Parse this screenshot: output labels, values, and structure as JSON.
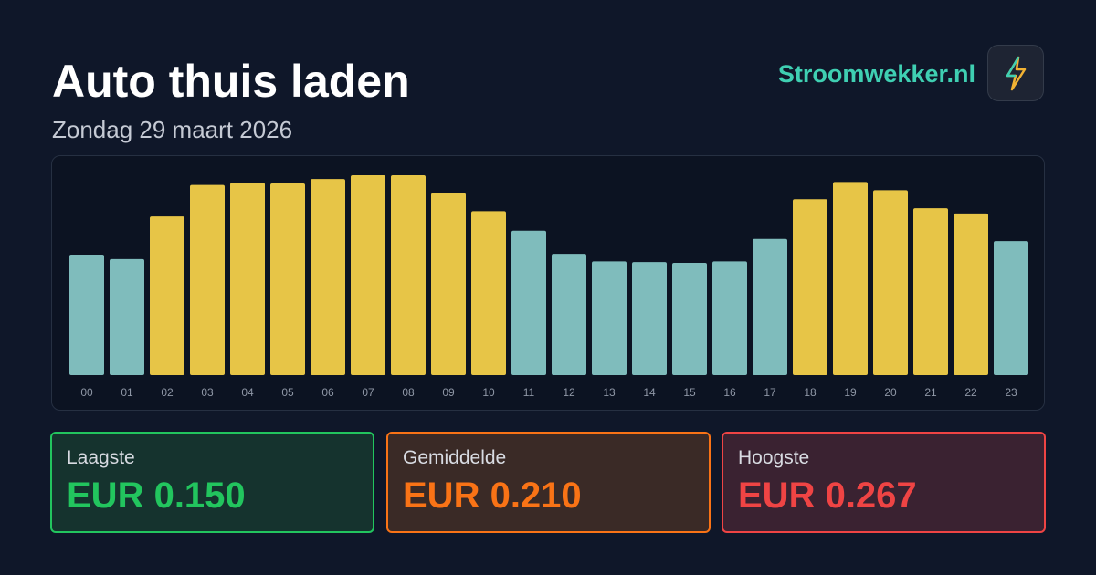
{
  "header": {
    "title": "Auto thuis laden",
    "subtitle": "Zondag 29 maart 2026",
    "brand": "Stroomwekker.nl"
  },
  "chart_data": {
    "type": "bar",
    "categories": [
      "00",
      "01",
      "02",
      "03",
      "04",
      "05",
      "06",
      "07",
      "08",
      "09",
      "10",
      "11",
      "12",
      "13",
      "14",
      "15",
      "16",
      "17",
      "18",
      "19",
      "20",
      "21",
      "22",
      "23"
    ],
    "values": [
      0.161,
      0.155,
      0.212,
      0.254,
      0.257,
      0.256,
      0.262,
      0.267,
      0.267,
      0.243,
      0.219,
      0.193,
      0.162,
      0.152,
      0.151,
      0.15,
      0.152,
      0.182,
      0.235,
      0.258,
      0.247,
      0.223,
      0.216,
      0.179
    ],
    "colors": [
      "#7fbcbc",
      "#7fbcbc",
      "#e7c547",
      "#e7c547",
      "#e7c547",
      "#e7c547",
      "#e7c547",
      "#e7c547",
      "#e7c547",
      "#e7c547",
      "#e7c547",
      "#7fbcbc",
      "#7fbcbc",
      "#7fbcbc",
      "#7fbcbc",
      "#7fbcbc",
      "#7fbcbc",
      "#7fbcbc",
      "#e7c547",
      "#e7c547",
      "#e7c547",
      "#e7c547",
      "#e7c547",
      "#7fbcbc"
    ]
  },
  "stats": [
    {
      "label": "Laagste",
      "value": "EUR 0.150"
    },
    {
      "label": "Gemiddelde",
      "value": "EUR 0.210"
    },
    {
      "label": "Hoogste",
      "value": "EUR 0.267"
    }
  ]
}
